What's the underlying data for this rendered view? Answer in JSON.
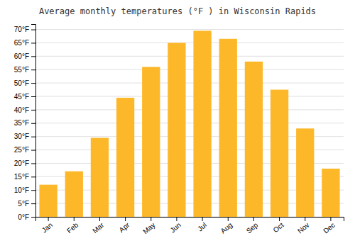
{
  "chart_data": {
    "type": "bar",
    "title": "Average monthly temperatures (°F ) in Wisconsin Rapids",
    "categories": [
      "Jan",
      "Feb",
      "Mar",
      "Apr",
      "May",
      "Jun",
      "Jul",
      "Aug",
      "Sep",
      "Oct",
      "Nov",
      "Dec"
    ],
    "values": [
      12,
      17,
      29.5,
      44.5,
      56,
      65,
      69.5,
      66.5,
      58,
      47.5,
      33,
      18
    ],
    "color": "#FDB82A",
    "ylim": [
      0,
      72
    ],
    "yticks": [
      {
        "value": 0,
        "label": "0°F"
      },
      {
        "value": 5,
        "label": "5°F"
      },
      {
        "value": 10,
        "label": "10°F"
      },
      {
        "value": 15,
        "label": "15°F"
      },
      {
        "value": 20,
        "label": "20°F"
      },
      {
        "value": 25,
        "label": "25°F"
      },
      {
        "value": 30,
        "label": "30°F"
      },
      {
        "value": 35,
        "label": "35°F"
      },
      {
        "value": 40,
        "label": "40°F"
      },
      {
        "value": 45,
        "label": "45°F"
      },
      {
        "value": 50,
        "label": "50°F"
      },
      {
        "value": 55,
        "label": "55°F"
      },
      {
        "value": 60,
        "label": "60°F"
      },
      {
        "value": 65,
        "label": "65°F"
      },
      {
        "value": 70,
        "label": "70°F"
      }
    ],
    "grid": true
  }
}
